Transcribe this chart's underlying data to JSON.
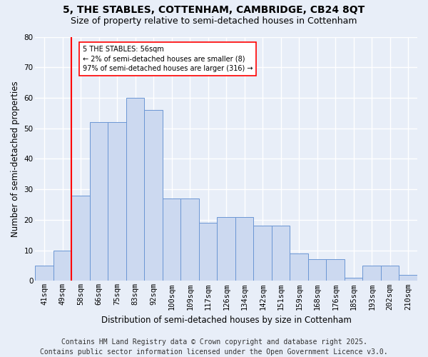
{
  "title": "5, THE STABLES, COTTENHAM, CAMBRIDGE, CB24 8QT",
  "subtitle": "Size of property relative to semi-detached houses in Cottenham",
  "xlabel": "Distribution of semi-detached houses by size in Cottenham",
  "ylabel": "Number of semi-detached properties",
  "categories": [
    "41sqm",
    "49sqm",
    "58sqm",
    "66sqm",
    "75sqm",
    "83sqm",
    "92sqm",
    "100sqm",
    "109sqm",
    "117sqm",
    "126sqm",
    "134sqm",
    "142sqm",
    "151sqm",
    "159sqm",
    "168sqm",
    "176sqm",
    "185sqm",
    "193sqm",
    "202sqm",
    "210sqm"
  ],
  "bar_heights": [
    5,
    10,
    28,
    52,
    52,
    60,
    56,
    27,
    27,
    19,
    21,
    21,
    18,
    18,
    9,
    7,
    7,
    1,
    5,
    5,
    2
  ],
  "bar_color": "#ccd9f0",
  "bar_edge_color": "#6b96d4",
  "red_line_x": 2.0,
  "annotation_text": "5 THE STABLES: 56sqm\n← 2% of semi-detached houses are smaller (8)\n97% of semi-detached houses are larger (316) →",
  "footer_line1": "Contains HM Land Registry data © Crown copyright and database right 2025.",
  "footer_line2": "Contains public sector information licensed under the Open Government Licence v3.0.",
  "ylim": [
    0,
    80
  ],
  "yticks": [
    0,
    10,
    20,
    30,
    40,
    50,
    60,
    70,
    80
  ],
  "background_color": "#e8eef8",
  "plot_bg_color": "#e8eef8",
  "grid_color": "#ffffff",
  "title_fontsize": 10,
  "subtitle_fontsize": 9,
  "axis_label_fontsize": 8.5,
  "tick_fontsize": 7.5,
  "annotation_fontsize": 7,
  "footer_fontsize": 7
}
